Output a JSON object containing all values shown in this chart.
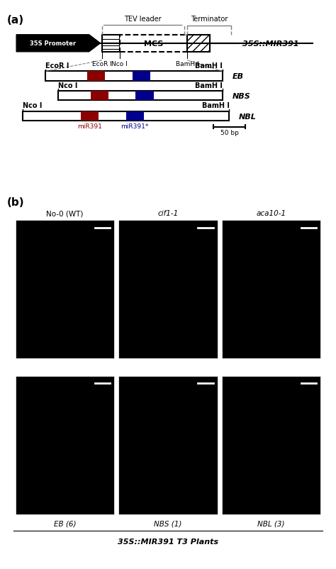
{
  "fig_width": 4.74,
  "fig_height": 8.03,
  "dpi": 100,
  "bg_color": "#ffffff",
  "panel_a_label": "(a)",
  "panel_b_label": "(b)",
  "promoter_text": "35S Promoter",
  "mcs_text": "MCS",
  "construct_label": "35S::MIR391",
  "tev_label": "TEV leader",
  "terminator_label": "Terminator",
  "ecor_label1": "EcoR I",
  "nco_label1": "Nco I",
  "bamh_label1": "BamH I",
  "eb_label": "EB",
  "nbs_label": "NBS",
  "nbl_label": "NBL",
  "ecor_eb": "EcoR I",
  "bamh_eb": "BamH I",
  "nco_nbs": "Nco I",
  "bamh_nbs": "BamH I",
  "nco_nbl": "Nco I",
  "bamh_nbl": "BamH I",
  "mir391_label": "miR391",
  "mir391star_label": "miR391*",
  "scale_label": "50 bp",
  "red_color": "#8B0000",
  "blue_color": "#00008B",
  "top_row_labels": [
    "No-0 (WT)",
    "cif1-1",
    "aca10-1"
  ],
  "bottom_row_labels": [
    "EB (6)",
    "NBS (1)",
    "NBL (3)"
  ],
  "bottom_caption": "35S::MIR391 T3 Plants"
}
